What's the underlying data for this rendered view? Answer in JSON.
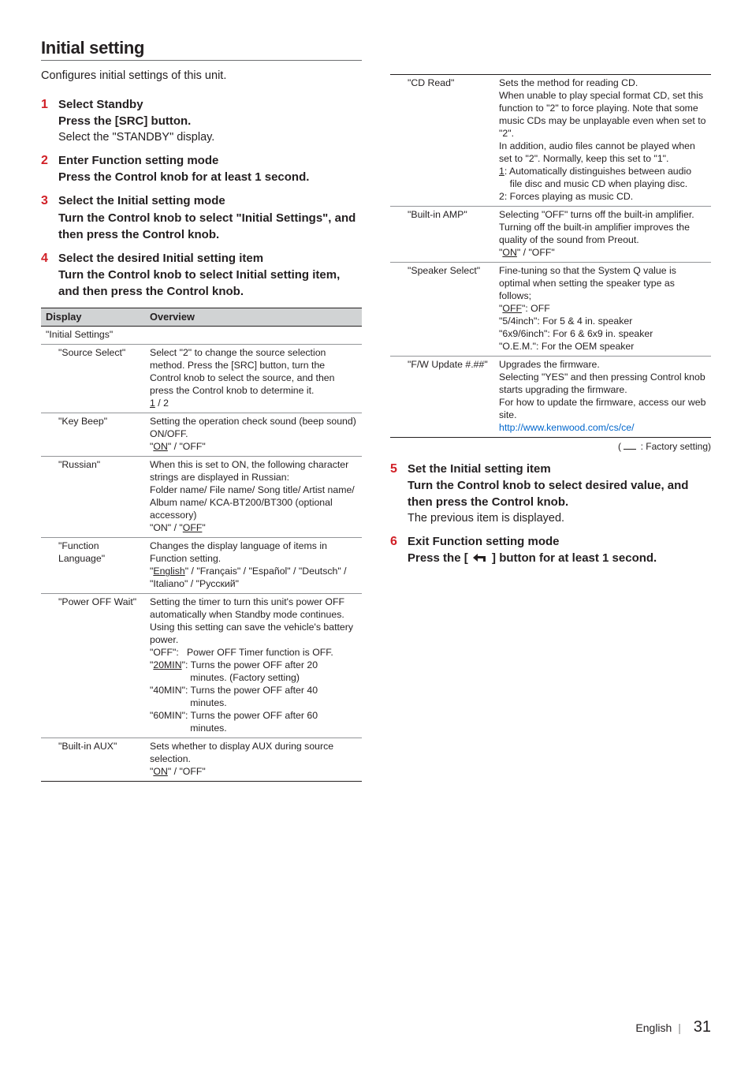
{
  "section": {
    "title": "Initial setting",
    "intro": "Configures initial settings of this unit."
  },
  "steps": [
    {
      "num": "1",
      "title": "Select Standby",
      "sub": "Press the [SRC] button.",
      "plain": "Select the \"STANDBY\" display."
    },
    {
      "num": "2",
      "title": "Enter Function setting mode",
      "sub": "Press the Control knob for at least 1 second."
    },
    {
      "num": "3",
      "title": "Select the Initial setting mode",
      "sub": "Turn the Control knob to select \"Initial Settings\", and then press the Control knob."
    },
    {
      "num": "4",
      "title": "Select the desired Initial setting item",
      "sub": "Turn the Control knob to select Initial setting item, and then press the Control knob."
    }
  ],
  "table1": {
    "headers": [
      "Display",
      "Overview"
    ],
    "rows": [
      {
        "display": "\"Initial Settings\"",
        "overview": "",
        "indent": false
      },
      {
        "display": "\"Source Select\"",
        "indent": true,
        "overview_html": "Select \"2\" to change the source selection method. Press the [SRC] button, turn the Control knob to select the source, and then press the Control knob to determine it.<br><span class=\"u\">1</span> / 2"
      },
      {
        "display": "\"Key Beep\"",
        "indent": true,
        "overview_html": "Setting the operation check sound (beep sound) ON/OFF.<br>\"<span class=\"u\">ON</span>\" / \"OFF\""
      },
      {
        "display": "\"Russian\"",
        "indent": true,
        "overview_html": "When this is set to ON, the following character strings are displayed in Russian:<br>Folder name/ File name/ Song title/ Artist name/ Album name/ KCA-BT200/BT300 (optional accessory)<br>\"ON\" / \"<span class=\"u\">OFF</span>\""
      },
      {
        "display": "\"Function Language\"",
        "indent": true,
        "overview_html": "Changes the display language of items in Function setting.<br>\"<span class=\"u\">English</span>\" / \"Français\" / \"Español\" / \"Deutsch\" / \"Italiano\" / \"Русский\""
      },
      {
        "display": "\"Power OFF Wait\"",
        "indent": true,
        "overview_html": "Setting the timer to turn this unit's power OFF automatically when Standby mode continues. Using this setting can save the vehicle's battery power.<br>\"OFF\":&nbsp;&nbsp;&nbsp;Power OFF Timer function is OFF.<br>\"<span class=\"u\">20MIN</span>\": Turns the power OFF after 20<br>&nbsp;&nbsp;&nbsp;&nbsp;&nbsp;&nbsp;&nbsp;&nbsp;&nbsp;&nbsp;&nbsp;&nbsp;&nbsp;&nbsp;&nbsp;minutes. (Factory setting)<br>\"40MIN\": Turns the power OFF after 40<br>&nbsp;&nbsp;&nbsp;&nbsp;&nbsp;&nbsp;&nbsp;&nbsp;&nbsp;&nbsp;&nbsp;&nbsp;&nbsp;&nbsp;&nbsp;minutes.<br>\"60MIN\": Turns the power OFF after 60<br>&nbsp;&nbsp;&nbsp;&nbsp;&nbsp;&nbsp;&nbsp;&nbsp;&nbsp;&nbsp;&nbsp;&nbsp;&nbsp;&nbsp;&nbsp;minutes."
      },
      {
        "display": "\"Built-in AUX\"",
        "indent": true,
        "overview_html": "Sets whether to display AUX during source selection.<br>\"<span class=\"u\">ON</span>\" / \"OFF\""
      }
    ]
  },
  "table2": {
    "rows": [
      {
        "display": "\"CD Read\"",
        "indent": true,
        "overview_html": "Sets the method for reading CD.<br>When unable to play special format CD, set this function to \"2\" to force playing. Note that some music CDs may be unplayable even when set to \"2\".<br>In addition, audio files cannot be played when set to \"2\". Normally, keep this set to \"1\".<br><span class=\"u\">1</span>: Automatically distinguishes between audio<br>&nbsp;&nbsp;&nbsp;&nbsp;file disc and music CD when playing disc.<br>2: Forces playing as music CD."
      },
      {
        "display": "\"Built-in AMP\"",
        "indent": true,
        "overview_html": "Selecting \"OFF\" turns off the built-in amplifier. Turning off the built-in amplifier improves the quality of the sound from Preout.<br>\"<span class=\"u\">ON</span>\" / \"OFF\""
      },
      {
        "display": "\"Speaker Select\"",
        "indent": true,
        "overview_html": "Fine-tuning so that the System Q value is optimal when setting the speaker type as follows;<br>\"<span class=\"u\">OFF</span>\": OFF<br>\"5/4inch\": For 5 &amp; 4 in. speaker<br>\"6x9/6inch\": For 6 &amp; 6x9 in. speaker<br>\"O.E.M.\": For the OEM speaker"
      },
      {
        "display": "\"F/W Update #.##\"",
        "indent": true,
        "overview_html": "Upgrades the firmware.<br>Selecting \"YES\" and then pressing Control knob starts upgrading the firmware.<br>For how to update the firmware, access our web site.<br><span class=\"link\">http://www.kenwood.com/cs/ce/</span>"
      }
    ]
  },
  "factory_note": ": Factory setting)",
  "steps_after": [
    {
      "num": "5",
      "title": "Set the Initial setting item",
      "sub": "Turn the Control knob to select desired value, and then press the Control knob.",
      "plain": "The previous item is displayed."
    },
    {
      "num": "6",
      "title": "Exit Function setting mode",
      "sub_html": "Press the [ <svg class=\"back-icon\" width=\"22\" height=\"14\" viewBox=\"0 0 22 14\"><path d=\"M2 7 L8 2 L8 5 L18 5 L18 12 L15 12 L15 8 L8 8 L8 12 Z\" fill=\"#231f20\"/></svg> ] button for at least 1 second."
    }
  ],
  "footer": {
    "lang": "English",
    "page": "31"
  }
}
